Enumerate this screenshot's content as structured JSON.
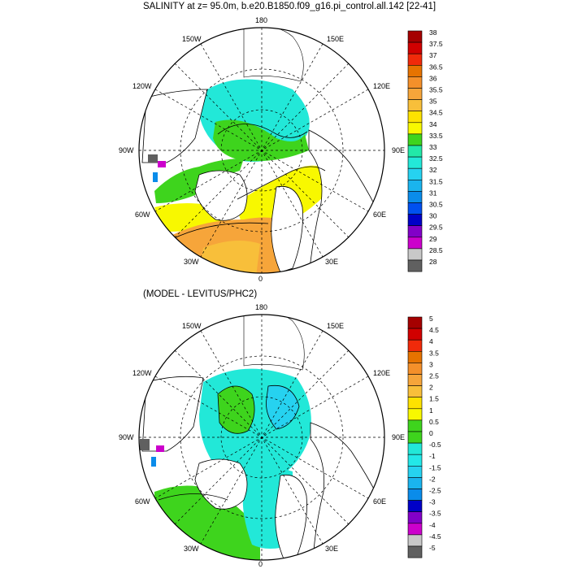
{
  "panel1": {
    "title": "SALINITY at z=  95.0m, b.e20.B1850.f09_g16.pi_control.all.142 [22-41]",
    "labels": {
      "top": "180",
      "nw": "150W",
      "ne": "150E",
      "wnw": "120W",
      "ene": "120E",
      "w": "90W",
      "e": "90E",
      "wsw": "60W",
      "ese": "60E",
      "sw": "30W",
      "se": "30E",
      "bottom": "0"
    },
    "colorbar": {
      "ticks": [
        "38",
        "37.5",
        "37",
        "36.5",
        "36",
        "35.5",
        "35",
        "34.5",
        "34",
        "33.5",
        "33",
        "32.5",
        "32",
        "31.5",
        "31",
        "30.5",
        "30",
        "29.5",
        "29",
        "28.5",
        "28"
      ],
      "colors": [
        "#a50000",
        "#d10000",
        "#f02a0a",
        "#e67300",
        "#f4902a",
        "#f6a53a",
        "#f8bf3a",
        "#fde200",
        "#f8f800",
        "#3ed41d",
        "#22e8a8",
        "#23e8d8",
        "#26d2f0",
        "#1ab4ee",
        "#0a8cea",
        "#0050f0",
        "#0000c8",
        "#8200c8",
        "#cc00cc",
        "#c8c8c8",
        "#606060"
      ]
    }
  },
  "panel2": {
    "title": "(MODEL - LEVITUS/PHC2)",
    "labels": {
      "top": "180",
      "nw": "150W",
      "ne": "150E",
      "wnw": "120W",
      "ene": "120E",
      "w": "90W",
      "e": "90E",
      "wsw": "60W",
      "ese": "60E",
      "sw": "30W",
      "se": "30E",
      "bottom": "0"
    },
    "colorbar": {
      "ticks": [
        "5",
        "4.5",
        "4",
        "3.5",
        "3",
        "2.5",
        "2",
        "1.5",
        "1",
        "0.5",
        "0",
        "-0.5",
        "-1",
        "-1.5",
        "-2",
        "-2.5",
        "-3",
        "-3.5",
        "-4",
        "-4.5",
        "-5"
      ],
      "colors": [
        "#a50000",
        "#d10000",
        "#f02a0a",
        "#e67300",
        "#f4902a",
        "#f6a53a",
        "#f8bf3a",
        "#fde200",
        "#f8f800",
        "#3ed41d",
        "#3ed41d",
        "#22e8d8",
        "#23e8e8",
        "#26d2f0",
        "#1ab4ee",
        "#0a8cea",
        "#0000c8",
        "#8200c8",
        "#cc00cc",
        "#c8c8c8",
        "#606060"
      ]
    }
  }
}
